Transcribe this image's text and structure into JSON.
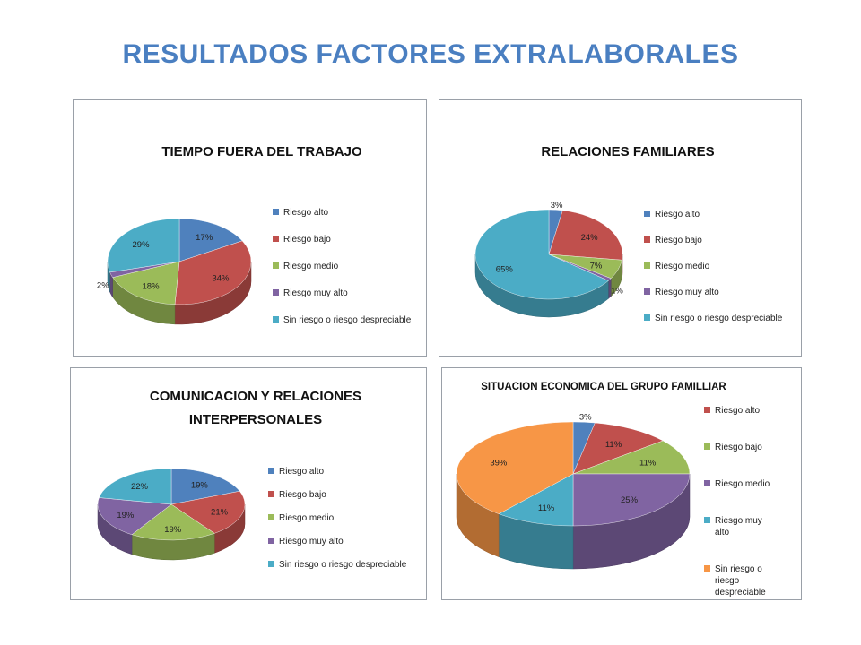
{
  "page": {
    "title": "RESULTADOS FACTORES EXTRALABORALES"
  },
  "colors": {
    "riesgo_alto": "#4f81bd",
    "riesgo_bajo": "#c0504d",
    "riesgo_medio": "#9bbb59",
    "riesgo_muy_alto": "#8064a2",
    "sin_riesgo": "#4bacc6",
    "orange": "#f79646"
  },
  "chart_data": [
    {
      "type": "pie",
      "title": [
        "TIEMPO FUERA DEL TRABAJO"
      ],
      "categories": [
        "Riesgo alto",
        "Riesgo bajo",
        "Riesgo medio",
        "Riesgo muy alto",
        "Sin riesgo o riesgo despreciable"
      ],
      "values": [
        17,
        34,
        18,
        2,
        29
      ],
      "labels": [
        "17%",
        "34%",
        "18%",
        "2%",
        "29%"
      ],
      "colors": [
        "#4f81bd",
        "#c0504d",
        "#9bbb59",
        "#8064a2",
        "#4bacc6"
      ],
      "legend": "right"
    },
    {
      "type": "pie",
      "title": [
        "RELACIONES FAMILIARES"
      ],
      "categories": [
        "Riesgo alto",
        "Riesgo bajo",
        "Riesgo medio",
        "Riesgo muy alto",
        "Sin riesgo o riesgo despreciable"
      ],
      "values": [
        3,
        24,
        7,
        1,
        65
      ],
      "labels": [
        "3%",
        "24%",
        "7%",
        "1%",
        "65%"
      ],
      "colors": [
        "#4f81bd",
        "#c0504d",
        "#9bbb59",
        "#8064a2",
        "#4bacc6"
      ],
      "legend": "right"
    },
    {
      "type": "pie",
      "title": [
        "COMUNICACION Y RELACIONES",
        "INTERPERSONALES"
      ],
      "categories": [
        "Riesgo alto",
        "Riesgo bajo",
        "Riesgo medio",
        "Riesgo muy alto",
        "Sin riesgo o riesgo despreciable"
      ],
      "values": [
        19,
        21,
        19,
        19,
        22
      ],
      "labels": [
        "19%",
        "21%",
        "19%",
        "19%",
        "22%"
      ],
      "colors": [
        "#4f81bd",
        "#c0504d",
        "#9bbb59",
        "#8064a2",
        "#4bacc6"
      ],
      "legend": "right"
    },
    {
      "type": "pie",
      "title": [
        "SITUACION ECONOMICA DEL GRUPO FAMILLIAR"
      ],
      "categories": [
        "Riesgo alto",
        "Riesgo bajo",
        "Riesgo medio",
        "Riesgo muy alto",
        "Sin riesgo o riesgo despreciable"
      ],
      "legend_lines": [
        [
          "Riesgo alto"
        ],
        [
          "Riesgo bajo"
        ],
        [
          "Riesgo medio"
        ],
        [
          "Riesgo muy",
          "alto"
        ],
        [
          "Sin riesgo o",
          "riesgo",
          "despreciable"
        ]
      ],
      "legend_colors": [
        "#c0504d",
        "#9bbb59",
        "#8064a2",
        "#4bacc6",
        "#f79646"
      ],
      "values": [
        3,
        11,
        11,
        25,
        11,
        39
      ],
      "labels": [
        "3%",
        "11%",
        "11%",
        "25%",
        "11%",
        "39%"
      ],
      "colors": [
        "#4f81bd",
        "#c0504d",
        "#9bbb59",
        "#8064a2",
        "#4bacc6",
        "#f79646"
      ],
      "legend": "right"
    }
  ]
}
